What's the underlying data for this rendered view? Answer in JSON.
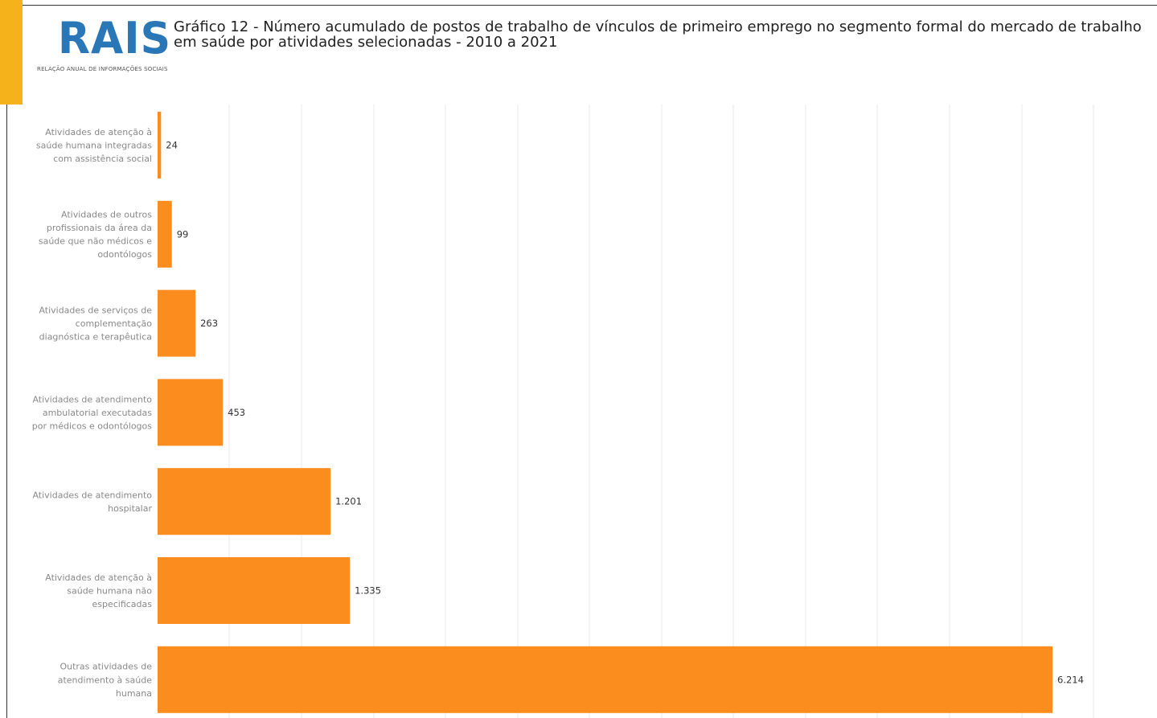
{
  "logo": {
    "text": "RAIS",
    "subtitle": "RELAÇÃO ANUAL DE INFORMAÇÕES SOCIAIS"
  },
  "colors": {
    "bar": "#fb8c1e",
    "accent": "#f6b21b",
    "logo": "#2a77b7",
    "gridline": "#e9e9e9"
  },
  "chart_data": {
    "type": "bar",
    "orientation": "horizontal",
    "title": "Gráfico 12 - Número acumulado de postos de trabalho de vínculos de primeiro emprego no segmento formal do mercado de trabalho em saúde por atividades selecionadas - 2010 a 2021",
    "categories": [
      [
        "Atividades de atenção à",
        "saúde humana integradas",
        "com assistência social"
      ],
      [
        "Atividades de outros",
        "profissionais da área da",
        "saúde que não médicos e",
        "odontólogos"
      ],
      [
        "Atividades de serviços de",
        "complementação",
        "diagnóstica e terapêutica"
      ],
      [
        "Atividades de atendimento",
        "ambulatorial executadas",
        "por médicos e odontólogos"
      ],
      [
        "Atividades de atendimento",
        "hospitalar"
      ],
      [
        "Atividades de atenção à",
        "saúde humana não",
        "especificadas"
      ],
      [
        "Outras atividades de",
        "atendimento à saúde",
        "humana"
      ]
    ],
    "values": [
      24,
      99,
      263,
      453,
      1201,
      1335,
      6214
    ],
    "value_labels": [
      "24",
      "99",
      "263",
      "453",
      "1.201",
      "1.335",
      "6.214"
    ],
    "xlim": [
      0,
      7000
    ],
    "grid": true
  }
}
